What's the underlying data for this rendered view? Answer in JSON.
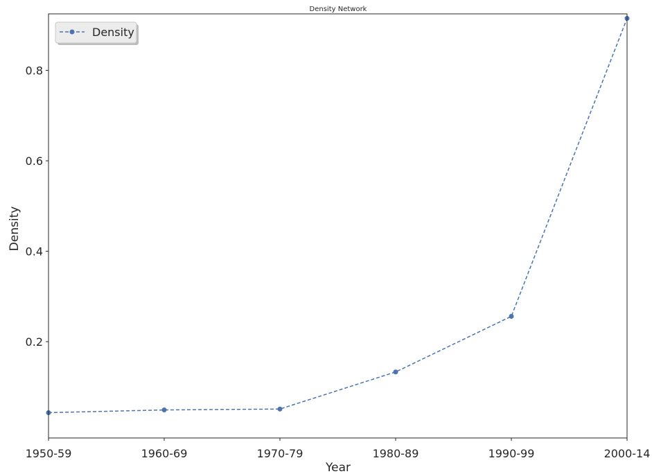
{
  "chart_data": {
    "type": "line",
    "title": "Density Network",
    "xlabel": "Year",
    "ylabel": "Density",
    "categories": [
      "1950-59",
      "1960-69",
      "1970-79",
      "1980-89",
      "1990-99",
      "2000-14"
    ],
    "series": [
      {
        "name": "Density",
        "values": [
          0.043,
          0.049,
          0.051,
          0.133,
          0.256,
          0.915
        ],
        "color": "#4c72b0",
        "line_style": "dashed",
        "marker": "circle"
      }
    ],
    "yticks": [
      0.2,
      0.4,
      0.6,
      0.8
    ],
    "ytick_labels": [
      "0.2",
      "0.4",
      "0.6",
      "0.8"
    ],
    "ylim": [
      -0.013,
      0.925
    ],
    "grid": false,
    "legend_position": "top-left"
  }
}
